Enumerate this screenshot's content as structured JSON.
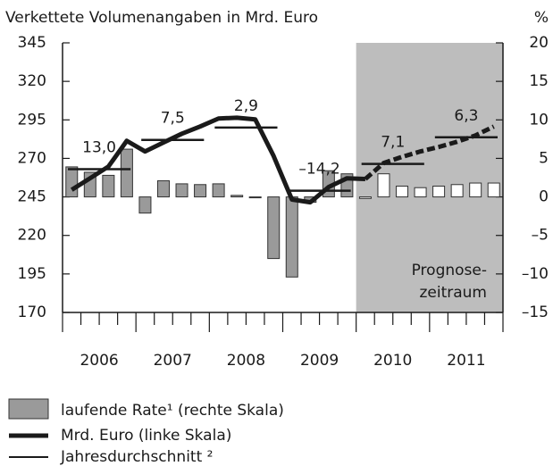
{
  "chart_data": {
    "type": "bar_line",
    "y_axis_label": "Verkettete Volumenangaben in Mrd. Euro",
    "y2_axis_label": "%",
    "categories": [
      null,
      null,
      null,
      null,
      null,
      null,
      null,
      null,
      null,
      null,
      null,
      null,
      null,
      null,
      null,
      null,
      null,
      null,
      null,
      null,
      null,
      null,
      null,
      null
    ],
    "years": [
      "2006",
      "2007",
      "2008",
      "2009",
      "2010",
      "2011"
    ],
    "ylim": [
      170,
      345
    ],
    "yticks": [
      170,
      195,
      220,
      245,
      270,
      295,
      320,
      345
    ],
    "y2lim": [
      -15,
      20
    ],
    "y2ticks": [
      {
        "value": -15,
        "label": "–15"
      },
      {
        "value": -10,
        "label": "–10"
      },
      {
        "value": -5,
        "label": "–5"
      },
      0,
      5,
      10,
      15,
      20
    ],
    "forecast": {
      "start": 16,
      "label": [
        "Prognose-",
        "zeitraum"
      ],
      "color": "#bdbdbd"
    },
    "series": [
      {
        "name": "laufende Rate¹ (rechte Skala)",
        "type": "bar",
        "axis": "y2",
        "color": "#9a9a9a",
        "values": [
          3.9,
          3.2,
          2.8,
          6.2,
          -2.1,
          2.1,
          1.7,
          1.6,
          1.7,
          0.2,
          -0.1,
          -8.0,
          -10.4,
          -0.7,
          3.4,
          3.0,
          -0.2,
          3.0,
          1.4,
          1.2,
          1.4,
          1.6,
          1.8,
          1.8
        ]
      },
      {
        "name": "Mrd. Euro (linke Skala)",
        "type": "line",
        "axis": "y",
        "color": "#1a1a1a",
        "values": [
          249.6,
          257.1,
          264.7,
          281.4,
          274.5,
          280.3,
          286,
          290.7,
          295.9,
          296.4,
          295.3,
          271.6,
          243.3,
          241.5,
          251.4,
          257.1,
          256.6,
          267,
          271,
          274.5,
          277.4,
          280.8,
          284.9,
          290.7
        ]
      }
    ],
    "averages": {
      "name": "Jahresdurchschnitt ²",
      "color": "#1a1a1a",
      "values": [
        263,
        282,
        290,
        249,
        266.4,
        283.7
      ],
      "labels": [
        "13,0",
        "7,5",
        "2,9",
        "–14,2",
        "7,1",
        "6,3"
      ]
    }
  }
}
